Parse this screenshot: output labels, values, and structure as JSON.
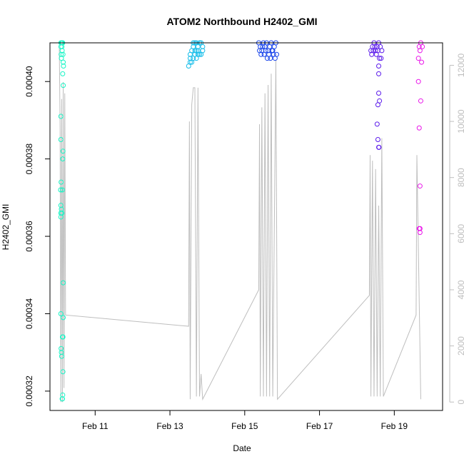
{
  "chart_data": {
    "type": "scatter",
    "title": "ATOM2 Northbound H2402_GMI",
    "xlabel": "Date",
    "ylabel": "H2402_GMI",
    "xlim": [
      "2024-02-09T19:00",
      "2024-02-20T07:00"
    ],
    "ylim": [
      0.000315,
      0.00041
    ],
    "y2lim": [
      -300,
      12800
    ],
    "x_ticks": [
      {
        "date": "2024-02-11T00:00",
        "label": "Feb 11"
      },
      {
        "date": "2024-02-13T00:00",
        "label": "Feb 13"
      },
      {
        "date": "2024-02-15T00:00",
        "label": "Feb 15"
      },
      {
        "date": "2024-02-17T00:00",
        "label": "Feb 17"
      },
      {
        "date": "2024-02-19T00:00",
        "label": "Feb 19"
      }
    ],
    "y_ticks": [
      {
        "value": 0.00032,
        "label": "0.00032"
      },
      {
        "value": 0.00034,
        "label": "0.00034"
      },
      {
        "value": 0.00036,
        "label": "0.00036"
      },
      {
        "value": 0.00038,
        "label": "0.00038"
      },
      {
        "value": 0.0004,
        "label": "0.00040"
      }
    ],
    "y2_ticks": [
      {
        "value": 0,
        "label": "0"
      },
      {
        "value": 2000,
        "label": "2000"
      },
      {
        "value": 4000,
        "label": "4000"
      },
      {
        "value": 6000,
        "label": "6000"
      },
      {
        "value": 8000,
        "label": "8000"
      },
      {
        "value": 10000,
        "label": "10000"
      },
      {
        "value": 12000,
        "label": "12000"
      }
    ],
    "colors": {
      "axis": "#000000",
      "secondary_axis": "#bebebe",
      "secondary_line": "#bebebe"
    },
    "series": [
      {
        "color": "#19f5c6",
        "points": [
          [
            "2024-02-10T02:00",
            0.00041
          ],
          [
            "2024-02-10T02:00",
            0.000409
          ],
          [
            "2024-02-10T02:10",
            0.000407
          ],
          [
            "2024-02-10T02:20",
            0.000406
          ],
          [
            "2024-02-10T02:30",
            0.00041
          ],
          [
            "2024-02-10T02:40",
            0.000409
          ],
          [
            "2024-02-10T02:50",
            0.000408
          ],
          [
            "2024-02-10T03:00",
            0.00041
          ],
          [
            "2024-02-10T03:10",
            0.00041
          ],
          [
            "2024-02-10T03:20",
            0.000407
          ],
          [
            "2024-02-10T03:30",
            0.000405
          ],
          [
            "2024-02-10T03:40",
            0.000404
          ],
          [
            "2024-02-10T02:00",
            0.000391
          ],
          [
            "2024-02-10T02:00",
            0.000385
          ],
          [
            "2024-02-10T02:10",
            0.000374
          ],
          [
            "2024-02-10T01:50",
            0.000372
          ],
          [
            "2024-02-10T02:00",
            0.000368
          ],
          [
            "2024-02-10T02:00",
            0.000366
          ],
          [
            "2024-02-10T02:00",
            0.000365
          ],
          [
            "2024-02-10T02:20",
            0.000367
          ],
          [
            "2024-02-10T02:40",
            0.000366
          ],
          [
            "2024-02-10T03:00",
            0.000372
          ],
          [
            "2024-02-10T03:10",
            0.00038
          ],
          [
            "2024-02-10T03:20",
            0.000382
          ],
          [
            "2024-02-10T03:10",
            0.000402
          ],
          [
            "2024-02-10T03:30",
            0.000399
          ],
          [
            "2024-02-10T03:30",
            0.000348
          ],
          [
            "2024-02-10T02:00",
            0.00034
          ],
          [
            "2024-02-10T03:30",
            0.000339
          ],
          [
            "2024-02-10T03:20",
            0.000334
          ],
          [
            "2024-02-10T03:00",
            0.000334
          ],
          [
            "2024-02-10T02:10",
            0.000331
          ],
          [
            "2024-02-10T02:20",
            0.00033
          ],
          [
            "2024-02-10T02:30",
            0.000329
          ],
          [
            "2024-02-10T03:20",
            0.000325
          ],
          [
            "2024-02-10T03:10",
            0.000319
          ],
          [
            "2024-02-10T02:50",
            0.000318
          ],
          [
            "2024-02-10T03:00",
            0.000318
          ]
        ]
      },
      {
        "color": "#14bce9",
        "points": [
          [
            "2024-02-13T13:00",
            0.000406
          ],
          [
            "2024-02-13T13:00",
            0.000407
          ],
          [
            "2024-02-13T14:00",
            0.000408
          ],
          [
            "2024-02-13T15:00",
            0.000409
          ],
          [
            "2024-02-13T16:00",
            0.00041
          ],
          [
            "2024-02-13T17:00",
            0.000408
          ],
          [
            "2024-02-13T18:00",
            0.000409
          ],
          [
            "2024-02-13T19:00",
            0.00041
          ],
          [
            "2024-02-13T20:00",
            0.000407
          ],
          [
            "2024-02-13T21:00",
            0.000409
          ],
          [
            "2024-02-13T12:00",
            0.000404
          ],
          [
            "2024-02-13T13:00",
            0.000405
          ],
          [
            "2024-02-13T14:00",
            0.000405
          ],
          [
            "2024-02-13T15:00",
            0.000406
          ],
          [
            "2024-02-13T16:00",
            0.000407
          ],
          [
            "2024-02-13T17:00",
            0.000406
          ],
          [
            "2024-02-13T18:00",
            0.000408
          ],
          [
            "2024-02-13T19:00",
            0.000407
          ],
          [
            "2024-02-13T20:00",
            0.00041
          ],
          [
            "2024-02-13T21:00",
            0.000408
          ],
          [
            "2024-02-13T15:00",
            0.00041
          ],
          [
            "2024-02-13T16:00",
            0.000408
          ],
          [
            "2024-02-13T17:00",
            0.00041
          ],
          [
            "2024-02-13T18:00",
            0.000407
          ]
        ]
      },
      {
        "color": "#1743ea",
        "points": [
          [
            "2024-02-15T09:00",
            0.00041
          ],
          [
            "2024-02-15T10:00",
            0.000409
          ],
          [
            "2024-02-15T11:00",
            0.000408
          ],
          [
            "2024-02-15T12:00",
            0.00041
          ],
          [
            "2024-02-15T13:00",
            0.000409
          ],
          [
            "2024-02-15T14:00",
            0.00041
          ],
          [
            "2024-02-15T15:00",
            0.000408
          ],
          [
            "2024-02-15T16:00",
            0.000409
          ],
          [
            "2024-02-15T17:00",
            0.00041
          ],
          [
            "2024-02-15T18:00",
            0.000408
          ],
          [
            "2024-02-15T19:00",
            0.000409
          ],
          [
            "2024-02-15T20:00",
            0.00041
          ],
          [
            "2024-02-15T09:30",
            0.000408
          ],
          [
            "2024-02-15T10:30",
            0.000407
          ],
          [
            "2024-02-15T11:30",
            0.000409
          ],
          [
            "2024-02-15T12:30",
            0.000407
          ],
          [
            "2024-02-15T13:30",
            0.000408
          ],
          [
            "2024-02-15T14:30",
            0.000406
          ],
          [
            "2024-02-15T15:30",
            0.000407
          ],
          [
            "2024-02-15T16:30",
            0.000406
          ],
          [
            "2024-02-15T17:30",
            0.000408
          ],
          [
            "2024-02-15T18:30",
            0.000407
          ],
          [
            "2024-02-15T19:30",
            0.000406
          ],
          [
            "2024-02-15T20:30",
            0.000407
          ]
        ]
      },
      {
        "color": "#5b1aeb",
        "points": [
          [
            "2024-02-18T09:00",
            0.000408
          ],
          [
            "2024-02-18T10:00",
            0.000409
          ],
          [
            "2024-02-18T11:00",
            0.00041
          ],
          [
            "2024-02-18T12:00",
            0.000408
          ],
          [
            "2024-02-18T13:00",
            0.000409
          ],
          [
            "2024-02-18T14:00",
            0.00041
          ],
          [
            "2024-02-18T15:00",
            0.000409
          ],
          [
            "2024-02-18T16:00",
            0.000408
          ],
          [
            "2024-02-18T09:30",
            0.000407
          ],
          [
            "2024-02-18T10:30",
            0.000408
          ],
          [
            "2024-02-18T11:30",
            0.000409
          ],
          [
            "2024-02-18T12:30",
            0.000407
          ],
          [
            "2024-02-18T13:30",
            0.000408
          ],
          [
            "2024-02-18T14:30",
            0.000406
          ],
          [
            "2024-02-18T15:30",
            0.000406
          ],
          [
            "2024-02-18T14:00",
            0.000404
          ],
          [
            "2024-02-18T14:00",
            0.000402
          ],
          [
            "2024-02-18T14:00",
            0.000397
          ],
          [
            "2024-02-18T14:30",
            0.000395
          ],
          [
            "2024-02-18T13:30",
            0.000394
          ],
          [
            "2024-02-18T13:00",
            0.000389
          ],
          [
            "2024-02-18T13:30",
            0.000385
          ],
          [
            "2024-02-18T14:00",
            0.000383
          ],
          [
            "2024-02-18T14:10",
            0.000383
          ]
        ]
      },
      {
        "color": "#e916e9",
        "points": [
          [
            "2024-02-19T16:00",
            0.000409
          ],
          [
            "2024-02-19T17:00",
            0.00041
          ],
          [
            "2024-02-19T18:00",
            0.000409
          ],
          [
            "2024-02-19T16:30",
            0.000408
          ],
          [
            "2024-02-19T15:30",
            0.000406
          ],
          [
            "2024-02-19T17:30",
            0.000405
          ],
          [
            "2024-02-19T15:30",
            0.0004
          ],
          [
            "2024-02-19T17:00",
            0.000395
          ],
          [
            "2024-02-19T16:00",
            0.000388
          ],
          [
            "2024-02-19T16:30",
            0.000373
          ],
          [
            "2024-02-19T16:30",
            0.000362
          ],
          [
            "2024-02-19T16:00",
            0.000362
          ],
          [
            "2024-02-19T16:30",
            0.000361
          ]
        ]
      }
    ],
    "secondary_line": [
      [
        "2024-02-10T01:00",
        12600
      ],
      [
        "2024-02-10T01:30",
        9800
      ],
      [
        "2024-02-10T02:00",
        0
      ],
      [
        "2024-02-10T02:30",
        10800
      ],
      [
        "2024-02-10T03:00",
        0
      ],
      [
        "2024-02-10T03:30",
        11400
      ],
      [
        "2024-02-10T04:00",
        500
      ],
      [
        "2024-02-10T04:30",
        11000
      ],
      [
        "2024-02-10T05:00",
        3100
      ],
      [
        "2024-02-13T12:00",
        2700
      ],
      [
        "2024-02-13T12:30",
        10000
      ],
      [
        "2024-02-13T13:00",
        100
      ],
      [
        "2024-02-13T14:00",
        10600
      ],
      [
        "2024-02-13T15:00",
        11200
      ],
      [
        "2024-02-13T16:00",
        11200
      ],
      [
        "2024-02-13T17:00",
        200
      ],
      [
        "2024-02-13T18:00",
        11200
      ],
      [
        "2024-02-13T19:00",
        200
      ],
      [
        "2024-02-13T20:00",
        1000
      ],
      [
        "2024-02-13T21:00",
        100
      ],
      [
        "2024-02-15T09:00",
        4000
      ],
      [
        "2024-02-15T09:30",
        9900
      ],
      [
        "2024-02-15T10:00",
        200
      ],
      [
        "2024-02-15T11:00",
        10500
      ],
      [
        "2024-02-15T12:00",
        200
      ],
      [
        "2024-02-15T13:00",
        11000
      ],
      [
        "2024-02-15T14:00",
        200
      ],
      [
        "2024-02-15T15:00",
        11300
      ],
      [
        "2024-02-15T16:00",
        200
      ],
      [
        "2024-02-15T17:00",
        11700
      ],
      [
        "2024-02-15T18:00",
        200
      ],
      [
        "2024-02-15T20:00",
        12200
      ],
      [
        "2024-02-15T21:00",
        100
      ],
      [
        "2024-02-18T08:00",
        3800
      ],
      [
        "2024-02-18T08:30",
        8800
      ],
      [
        "2024-02-18T09:00",
        200
      ],
      [
        "2024-02-18T10:00",
        8600
      ],
      [
        "2024-02-18T11:00",
        200
      ],
      [
        "2024-02-18T12:00",
        8300
      ],
      [
        "2024-02-18T13:00",
        200
      ],
      [
        "2024-02-18T14:00",
        7000
      ],
      [
        "2024-02-18T15:00",
        200
      ],
      [
        "2024-02-18T16:00",
        9400
      ],
      [
        "2024-02-18T17:00",
        200
      ],
      [
        "2024-02-19T14:00",
        3100
      ],
      [
        "2024-02-19T14:30",
        8800
      ],
      [
        "2024-02-19T17:00",
        100
      ]
    ]
  }
}
